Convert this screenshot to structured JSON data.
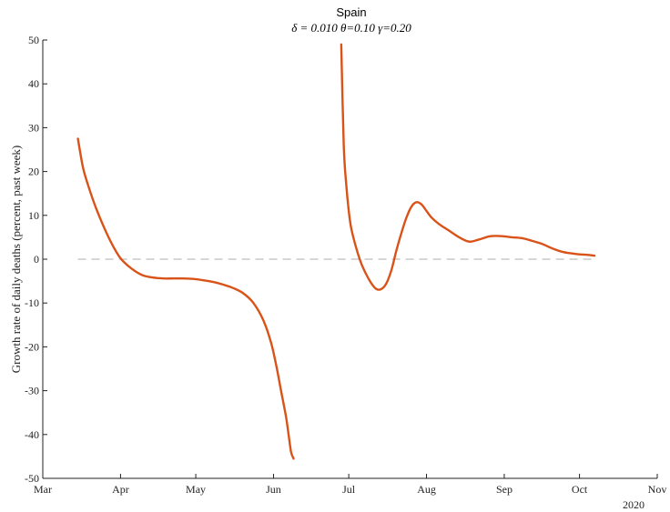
{
  "chart_data": {
    "type": "line",
    "title": "Spain",
    "subtitle": "δ = 0.010  θ=0.10  γ=0.20",
    "xlabel": "",
    "ylabel": "Growth rate of daily deaths (percent, past week)",
    "year_label": "2020",
    "x_ticks": [
      "Mar",
      "Apr",
      "May",
      "Jun",
      "Jul",
      "Aug",
      "Sep",
      "Oct",
      "Nov"
    ],
    "x_tick_dates": [
      "2020-03-01",
      "2020-04-01",
      "2020-05-01",
      "2020-06-01",
      "2020-07-01",
      "2020-08-01",
      "2020-09-01",
      "2020-10-01",
      "2020-11-01"
    ],
    "xlim": [
      "2020-03-01",
      "2020-11-01"
    ],
    "ylim": [
      -50,
      50
    ],
    "y_ticks": [
      -50,
      -40,
      -30,
      -20,
      -10,
      0,
      10,
      20,
      30,
      40,
      50
    ],
    "reference_line": {
      "y": 0,
      "from": "2020-03-15",
      "to": "2020-10-07",
      "style": "dashed",
      "color": "#c8c8c8"
    },
    "colors": {
      "series": "#d95319",
      "axis": "#222222"
    },
    "grid": false,
    "series": [
      {
        "color": "#d95319",
        "segments": [
          {
            "x": [
              "2020-03-15",
              "2020-03-17",
              "2020-03-19",
              "2020-03-22",
              "2020-03-26",
              "2020-03-29",
              "2020-04-01",
              "2020-04-04",
              "2020-04-07",
              "2020-04-10",
              "2020-04-14",
              "2020-04-18",
              "2020-04-22",
              "2020-04-26",
              "2020-04-30",
              "2020-05-04",
              "2020-05-08",
              "2020-05-12",
              "2020-05-16",
              "2020-05-20",
              "2020-05-24",
              "2020-05-28",
              "2020-05-31",
              "2020-06-02",
              "2020-06-04",
              "2020-06-06",
              "2020-06-07",
              "2020-06-08",
              "2020-06-09"
            ],
            "y": [
              27.5,
              21,
              17,
              12,
              6.5,
              3,
              0.2,
              -1.5,
              -2.8,
              -3.7,
              -4.2,
              -4.4,
              -4.4,
              -4.4,
              -4.5,
              -4.8,
              -5.2,
              -5.8,
              -6.6,
              -7.8,
              -10,
              -14,
              -19,
              -24,
              -30,
              -36,
              -40,
              -44,
              -45.5
            ]
          },
          {
            "x": [
              "2020-06-28",
              "2020-06-29",
              "2020-06-30",
              "2020-07-01",
              "2020-07-02",
              "2020-07-04",
              "2020-07-06",
              "2020-07-08",
              "2020-07-10",
              "2020-07-12",
              "2020-07-14",
              "2020-07-16",
              "2020-07-18",
              "2020-07-20",
              "2020-07-22",
              "2020-07-24",
              "2020-07-26",
              "2020-07-28",
              "2020-07-30",
              "2020-08-01",
              "2020-08-03",
              "2020-08-06",
              "2020-08-10",
              "2020-08-14",
              "2020-08-18",
              "2020-08-22",
              "2020-08-26",
              "2020-08-29",
              "2020-09-01",
              "2020-09-04",
              "2020-09-08",
              "2020-09-12",
              "2020-09-16",
              "2020-09-20",
              "2020-09-24",
              "2020-09-28",
              "2020-10-01",
              "2020-10-04",
              "2020-10-07"
            ],
            "y": [
              49,
              26,
              17,
              11,
              7,
              2.5,
              -1,
              -3.5,
              -5.5,
              -6.8,
              -6.8,
              -5.5,
              -2.5,
              2,
              6,
              9.5,
              12,
              13,
              12.5,
              11,
              9.5,
              8,
              6.5,
              5,
              4,
              4.5,
              5.2,
              5.3,
              5.2,
              5,
              4.8,
              4.2,
              3.5,
              2.5,
              1.7,
              1.3,
              1.1,
              1.0,
              0.8
            ]
          }
        ]
      }
    ]
  }
}
